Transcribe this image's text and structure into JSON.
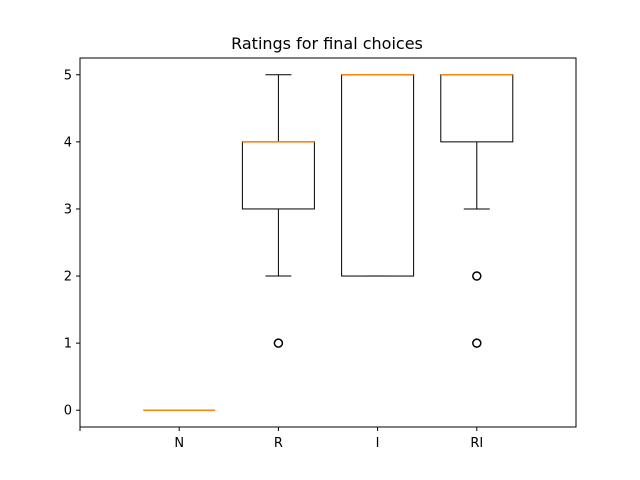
{
  "chart_data": {
    "type": "box",
    "title": "Ratings for final choices",
    "xlabel": "",
    "ylabel": "",
    "categories": [
      "",
      "N",
      "R",
      "I",
      "RI"
    ],
    "ylim": [
      -0.25,
      5.25
    ],
    "yticks": [
      0,
      1,
      2,
      3,
      4,
      5
    ],
    "grid": false,
    "series": [
      {
        "category": "N",
        "whisker_low": 0,
        "q1": 0,
        "median": 0,
        "q3": 0,
        "whisker_high": 0,
        "outliers": []
      },
      {
        "category": "R",
        "whisker_low": 2,
        "q1": 3,
        "median": 4,
        "q3": 4,
        "whisker_high": 5,
        "outliers": [
          1
        ]
      },
      {
        "category": "I",
        "whisker_low": 2,
        "q1": 2,
        "median": 5,
        "q3": 5,
        "whisker_high": 5,
        "outliers": []
      },
      {
        "category": "RI",
        "whisker_low": 3,
        "q1": 4,
        "median": 5,
        "q3": 5,
        "whisker_high": 5,
        "outliers": [
          2,
          1
        ]
      }
    ],
    "colors": {
      "box": "#000000",
      "median": "#ff7f0e",
      "outlier": "#000000"
    }
  }
}
